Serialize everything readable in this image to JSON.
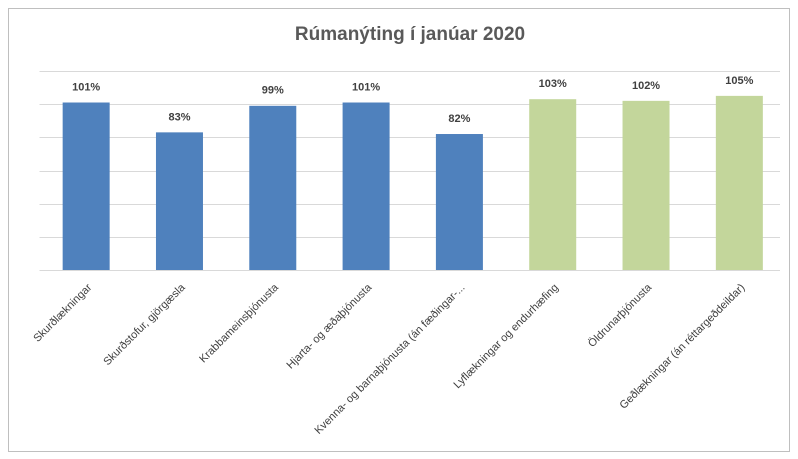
{
  "chart_data": {
    "type": "bar",
    "title": "Rúmanýting í janúar 2020",
    "categories": [
      "Skurðlækningar",
      "Skurðstofur, gjörgæsla",
      "Krabbameinsþjónusta",
      "Hjarta- og æðaþjónusta",
      "Kvenna- og barnaþjónusta (án fæðingar-...",
      "Lyflækningar og endurhæfing",
      "Öldrunarþjónusta",
      "Geðlækningar (án réttargeðdeildar)"
    ],
    "values": [
      101,
      83,
      99,
      101,
      82,
      103,
      102,
      105
    ],
    "value_labels": [
      "101%",
      "83%",
      "99%",
      "101%",
      "82%",
      "103%",
      "102%",
      "105%"
    ],
    "colors": [
      "#4f81bd",
      "#4f81bd",
      "#4f81bd",
      "#4f81bd",
      "#4f81bd",
      "#c3d69b",
      "#c3d69b",
      "#c3d69b"
    ],
    "ylim": [
      0,
      120
    ],
    "yticks": [
      0,
      20,
      40,
      60,
      80,
      100,
      120
    ],
    "grid": true
  }
}
